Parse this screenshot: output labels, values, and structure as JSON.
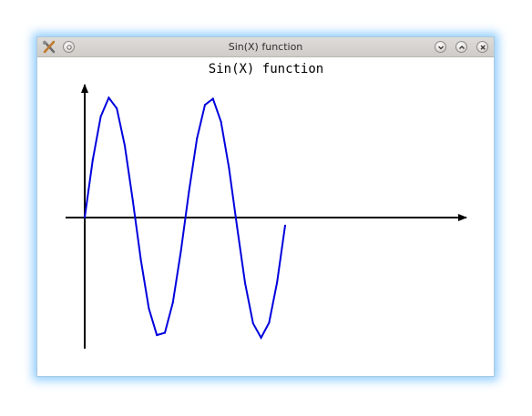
{
  "window": {
    "title": "Sin(X) function",
    "buttons": {
      "menu": "menu-button",
      "minimize": "minimize-button",
      "maximize": "maximize-button",
      "close": "close-button"
    }
  },
  "chart_data": {
    "type": "line",
    "title": "Sin(X) function",
    "xlabel": "",
    "ylabel": "",
    "grid": false,
    "legend": "none",
    "series": [
      {
        "color": "#0000dd",
        "x": [
          0,
          0.5,
          1.0,
          1.5,
          2.0,
          2.5,
          3.0,
          3.5,
          4.0,
          4.5,
          5.0,
          5.5,
          6.0,
          6.5,
          7.0,
          7.5,
          8.0,
          8.5,
          9.0,
          9.5,
          10.0,
          10.5,
          11.0,
          11.5,
          12.0,
          12.5
        ],
        "y": [
          0,
          0.479,
          0.841,
          0.997,
          0.909,
          0.598,
          0.141,
          -0.351,
          -0.757,
          -0.978,
          -0.959,
          -0.706,
          -0.279,
          0.215,
          0.657,
          0.938,
          0.989,
          0.798,
          0.412,
          -0.075,
          -0.544,
          -0.88,
          -1.0,
          -0.875,
          -0.537,
          -0.066
        ]
      }
    ],
    "axes_color": "#000000"
  }
}
